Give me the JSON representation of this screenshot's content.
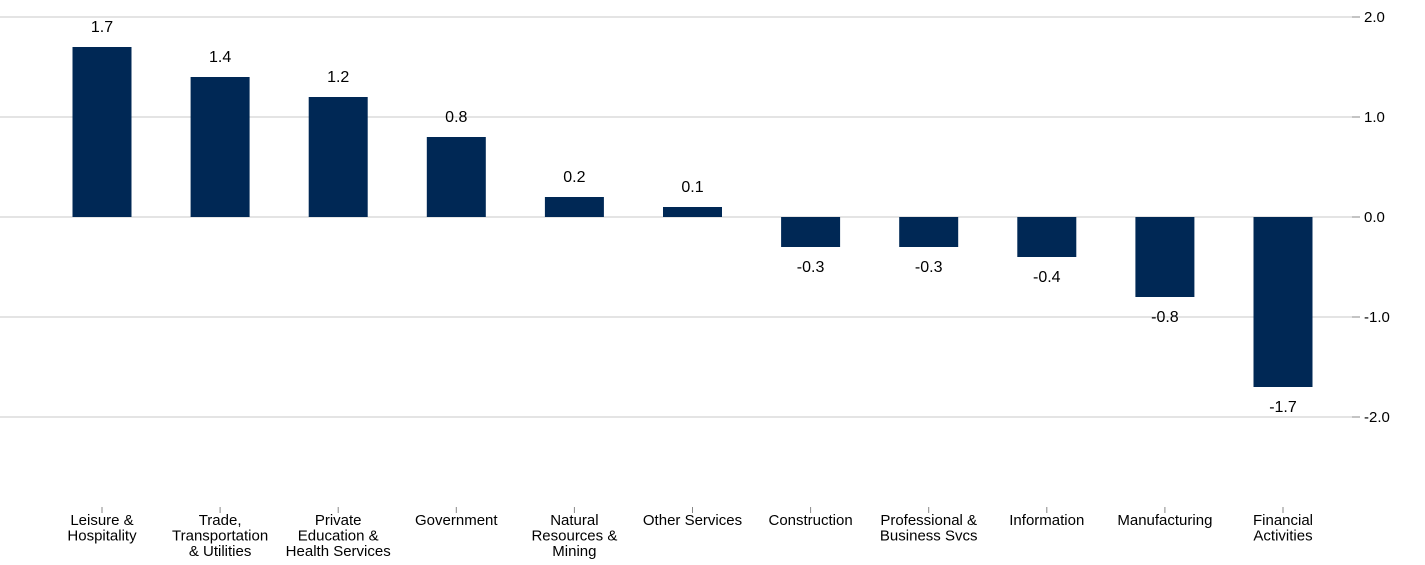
{
  "chart_data": {
    "type": "bar",
    "title": "",
    "xlabel": "",
    "ylabel": "",
    "categories": [
      "Leisure & Hospitality",
      "Trade, Transportation & Utilities",
      "Private Education & Health Services",
      "Government",
      "Natural Resources & Mining",
      "Other Services",
      "Construction",
      "Professional & Business Svcs",
      "Information",
      "Manufacturing",
      "Financial Activities"
    ],
    "category_label_lines": [
      [
        "Leisure &",
        "Hospitality"
      ],
      [
        "Trade,",
        "Transportation",
        "& Utilities"
      ],
      [
        "Private",
        "Education &",
        "Health Services"
      ],
      [
        "Government"
      ],
      [
        "Natural",
        "Resources &",
        "Mining"
      ],
      [
        "Other Services"
      ],
      [
        "Construction"
      ],
      [
        "Professional &",
        "Business Svcs"
      ],
      [
        "Information"
      ],
      [
        "Manufacturing"
      ],
      [
        "Financial",
        "Activities"
      ]
    ],
    "values": [
      1.7,
      1.4,
      1.2,
      0.8,
      0.2,
      0.1,
      -0.3,
      -0.3,
      -0.4,
      -0.8,
      -1.7
    ],
    "data_labels": [
      "1.7",
      "1.4",
      "1.2",
      "0.8",
      "0.2",
      "0.1",
      "-0.3",
      "-0.3",
      "-0.4",
      "-0.8",
      "-1.7"
    ],
    "ylim": [
      -2.0,
      2.0
    ],
    "y_ticks": [
      2.0,
      1.0,
      0.0,
      -1.0,
      -2.0
    ],
    "y_tick_labels": [
      "2.0",
      "1.0",
      "0.0",
      "-1.0",
      "-2.0"
    ],
    "y_axis_side": "right",
    "grid": true,
    "legend": "none",
    "colors": {
      "bar": "#002855",
      "grid": "#c8c8c8",
      "text": "#000000"
    }
  }
}
